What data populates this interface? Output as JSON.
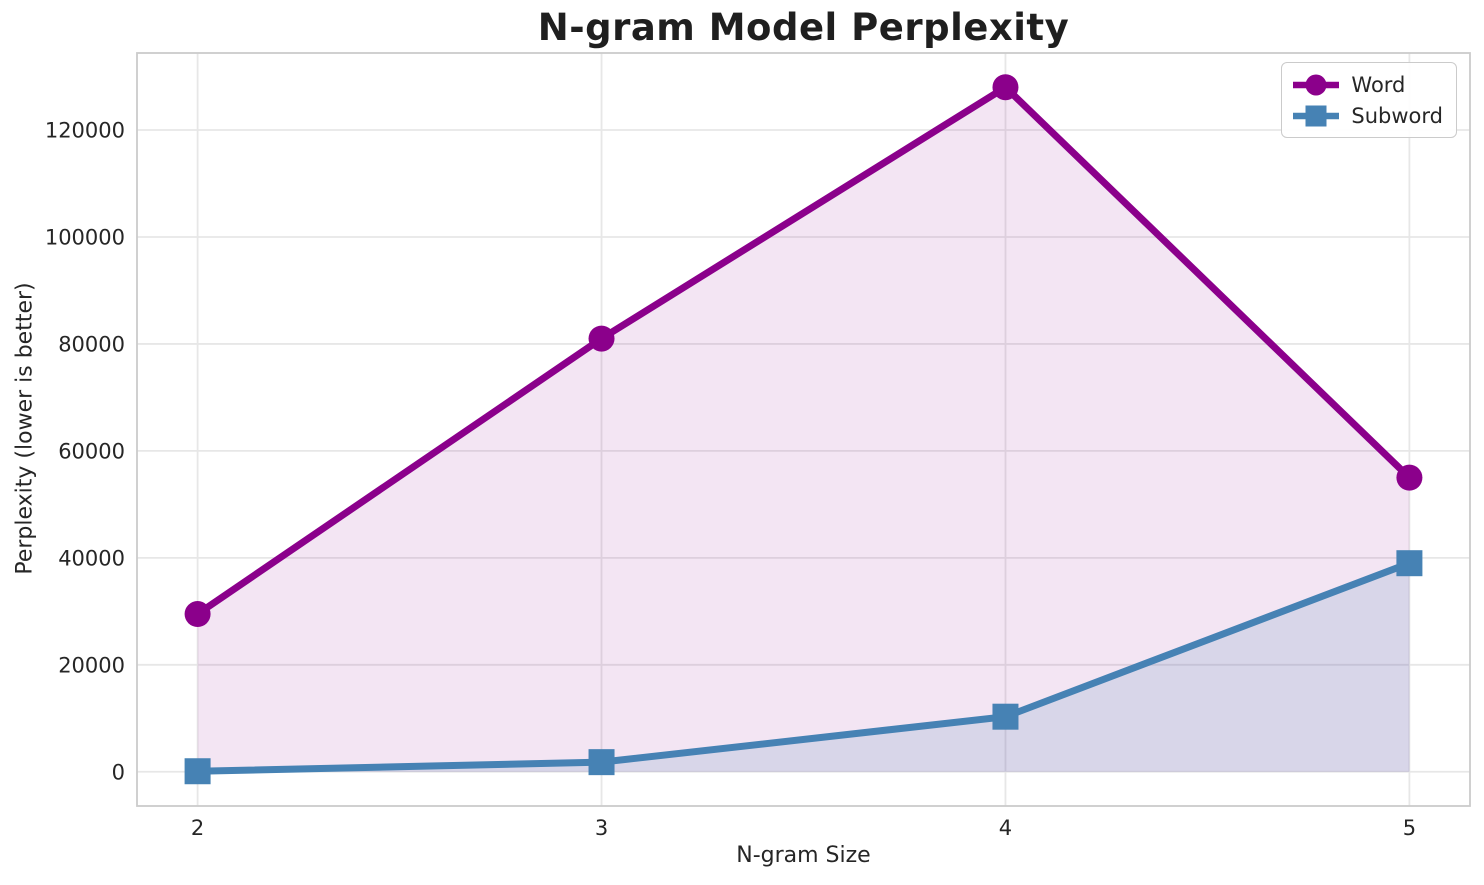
{
  "chart_data": {
    "type": "line",
    "title": "N-gram Model Perplexity",
    "xlabel": "N-gram Size",
    "ylabel": "Perplexity (lower is better)",
    "x": [
      2,
      3,
      4,
      5
    ],
    "series": [
      {
        "name": "Word",
        "values": [
          29500,
          81000,
          128000,
          55000
        ],
        "color": "#8B008B",
        "marker": "circle",
        "fill_alpha": 0.1
      },
      {
        "name": "Subword",
        "values": [
          100,
          1800,
          10300,
          39000
        ],
        "color": "#4682B4",
        "marker": "square",
        "fill_alpha": 0.15
      }
    ],
    "fill_baseline": 0,
    "xticks": [
      2,
      3,
      4,
      5
    ],
    "yticks": [
      0,
      20000,
      40000,
      60000,
      80000,
      100000,
      120000
    ],
    "xlim": [
      1.85,
      5.15
    ],
    "ylim": [
      -6400,
      134400
    ],
    "grid": true,
    "legend_position": "upper right",
    "style": {
      "text_color": "#262626",
      "grid_color": "#E7E7E7",
      "spine_color": "#CBCBCB",
      "background": "#FFFFFF"
    }
  }
}
